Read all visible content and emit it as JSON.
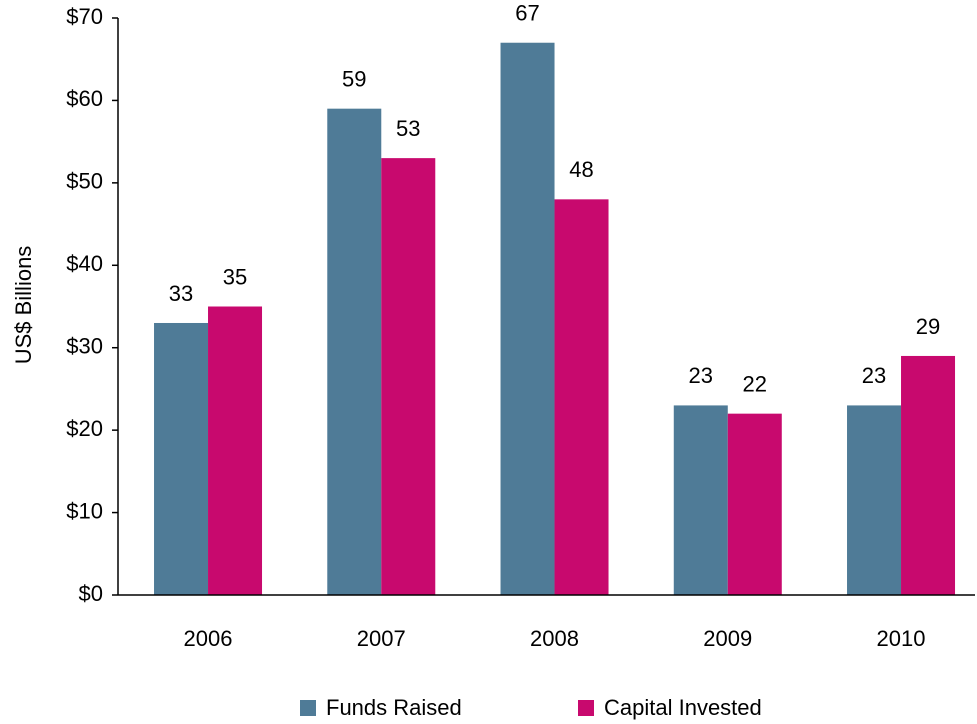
{
  "chart_data": {
    "type": "bar",
    "ylabel": "US$ Billions",
    "categories": [
      "2006",
      "2007",
      "2008",
      "2009",
      "2010"
    ],
    "series": [
      {
        "name": "Funds Raised",
        "color": "#4f7b97",
        "values": [
          33,
          59,
          67,
          23,
          23
        ]
      },
      {
        "name": "Capital Invested",
        "color": "#c8096e",
        "values": [
          35,
          53,
          48,
          22,
          29
        ]
      }
    ],
    "ylim": [
      0,
      70
    ],
    "yticks": [
      {
        "value": 0,
        "label": "$0"
      },
      {
        "value": 10,
        "label": "$10"
      },
      {
        "value": 20,
        "label": "$20"
      },
      {
        "value": 30,
        "label": "$30"
      },
      {
        "value": 40,
        "label": "$40"
      },
      {
        "value": 50,
        "label": "$50"
      },
      {
        "value": 60,
        "label": "$60"
      },
      {
        "value": 70,
        "label": "$70"
      }
    ],
    "legend": "bottom"
  }
}
